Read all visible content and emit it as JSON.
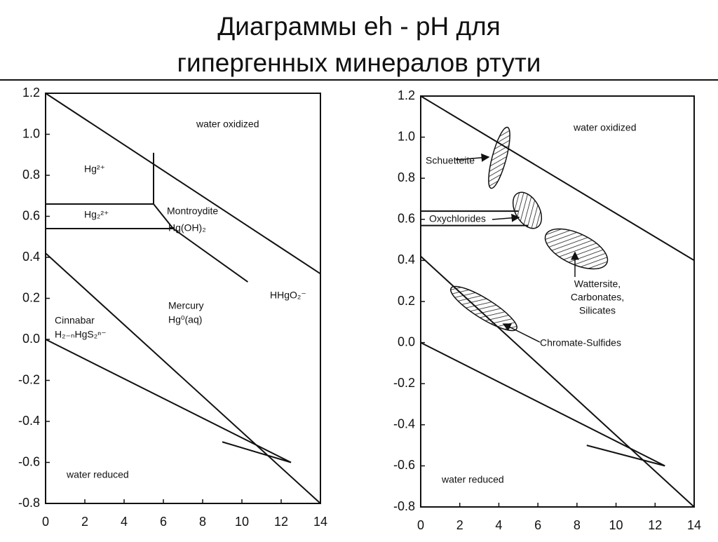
{
  "title_lines": [
    "Диаграммы eh - pH для",
    "гипергенных минералов ртути"
  ],
  "chart_data": [
    {
      "type": "phase-diagram",
      "xlim": [
        0,
        14
      ],
      "ylim": [
        -0.8,
        1.2
      ],
      "xticks": [
        0,
        2,
        4,
        6,
        8,
        10,
        12,
        14
      ],
      "yticks": [
        {
          "value": 1.2,
          "label": "1.2"
        },
        {
          "value": 1,
          "label": "1.0"
        },
        {
          "value": 0.8,
          "label": "0.8"
        },
        {
          "value": 0.6,
          "label": "0.6"
        },
        {
          "value": 0.4,
          "label": "0.4"
        },
        {
          "value": 0.2,
          "label": "0.2"
        },
        {
          "value": 0,
          "label": "0.0"
        },
        {
          "value": -0.2,
          "label": "-0.2"
        },
        {
          "value": -0.4,
          "label": "-0.4"
        },
        {
          "value": -0.6,
          "label": "-0.6"
        },
        {
          "value": -0.8,
          "label": "-0.8"
        }
      ],
      "boundaries": [
        {
          "x": [
            0,
            14
          ],
          "values": [
            1.2,
            0.32
          ]
        },
        {
          "x": [
            0,
            14
          ],
          "values": [
            0.42,
            -0.8
          ]
        },
        {
          "x": [
            0,
            12.5
          ],
          "values": [
            0,
            -0.6
          ]
        },
        {
          "x": [
            9,
            12.5
          ],
          "values": [
            -0.5,
            -0.6
          ]
        },
        {
          "x": [
            5.5,
            5.5,
            0
          ],
          "values": [
            0.91,
            0.66,
            0.66
          ]
        },
        {
          "x": [
            5.5,
            6.5,
            0
          ],
          "values": [
            0.66,
            0.54,
            0.54
          ]
        },
        {
          "x": [
            6.5,
            10.3
          ],
          "values": [
            0.54,
            0.28
          ]
        }
      ],
      "annotations": [
        "water  oxidized",
        "Hg²⁺",
        "Hg₂²⁺",
        "Montroydite",
        "Hg(OH)₂",
        "HHgO₂⁻",
        "Mercury",
        "Hg⁰(aq)",
        "Cinnabar",
        "H₂₋ₙHgS₂ⁿ⁻",
        "water  reduced"
      ]
    },
    {
      "type": "phase-diagram",
      "xlim": [
        0,
        14
      ],
      "ylim": [
        -0.8,
        1.2
      ],
      "xticks": [
        0,
        2,
        4,
        6,
        8,
        10,
        12,
        14
      ],
      "yticks": [
        {
          "value": 1.2,
          "label": "1.2"
        },
        {
          "value": 1,
          "label": "1.0"
        },
        {
          "value": 0.8,
          "label": "0.8"
        },
        {
          "value": 0.6,
          "label": "0.6"
        },
        {
          "value": 0.4,
          "label": "0.4"
        },
        {
          "value": 0.2,
          "label": "0.2"
        },
        {
          "value": 0,
          "label": "0.0"
        },
        {
          "value": -0.2,
          "label": "-0.2"
        },
        {
          "value": -0.4,
          "label": "-0.4"
        },
        {
          "value": -0.6,
          "label": "-0.6"
        },
        {
          "value": -0.8,
          "label": "-0.8"
        }
      ],
      "boundaries": [
        {
          "x": [
            0,
            14
          ],
          "values": [
            1.2,
            0.4
          ]
        },
        {
          "x": [
            0,
            14
          ],
          "values": [
            0.42,
            -0.8
          ]
        },
        {
          "x": [
            0,
            12.5
          ],
          "values": [
            0,
            -0.6
          ]
        },
        {
          "x": [
            8.5,
            12.5
          ],
          "values": [
            -0.5,
            -0.6
          ]
        },
        {
          "x": [
            0,
            5
          ],
          "values": [
            0.64,
            0.64
          ]
        },
        {
          "x": [
            0,
            5.5
          ],
          "values": [
            0.57,
            0.57
          ]
        }
      ],
      "annotations": [
        "water  oxidized",
        "Schuetteite",
        "Oxychlorides",
        "Wattersite,",
        "Carbonates,",
        "Silicates",
        "Chromate-Sulfides",
        "water  reduced"
      ]
    }
  ]
}
